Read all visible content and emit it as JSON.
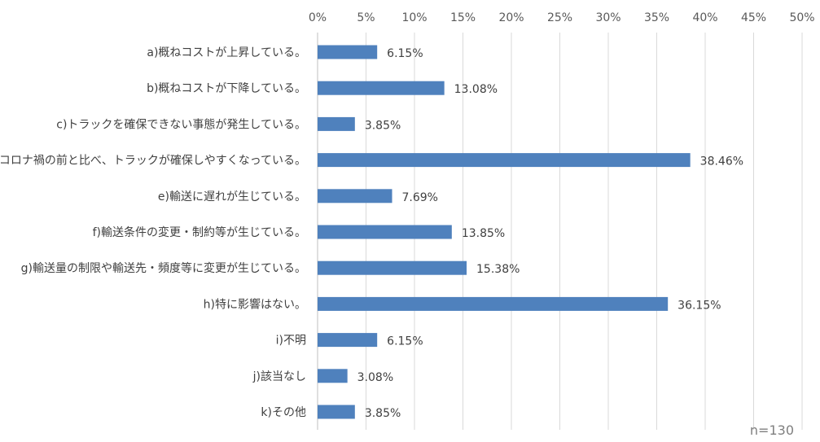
{
  "chart_data": {
    "type": "bar",
    "orientation": "horizontal",
    "categories": [
      "a)概ねコストが上昇している。",
      "b)概ねコストが下降している。",
      "c)トラックを確保できない事態が発生している。",
      "d)コロナ禍の前と比べ、トラックが確保しやすくなっている。",
      "e)輸送に遅れが生じている。",
      "f)輸送条件の変更・制約等が生じている。",
      "g)輸送量の制限や輸送先・頻度等に変更が生じている。",
      "h)特に影響はない。",
      "i)不明",
      "j)該当なし",
      "k)その他"
    ],
    "values": [
      6.15,
      13.08,
      3.85,
      38.46,
      7.69,
      13.85,
      15.38,
      36.15,
      6.15,
      3.08,
      3.85
    ],
    "data_labels": [
      "6.15%",
      "13.08%",
      "3.85%",
      "38.46%",
      "7.69%",
      "13.85%",
      "15.38%",
      "36.15%",
      "6.15%",
      "3.08%",
      "3.85%"
    ],
    "xticks": [
      0,
      5,
      10,
      15,
      20,
      25,
      30,
      35,
      40,
      45,
      50
    ],
    "xtick_labels": [
      "0%",
      "5%",
      "10%",
      "15%",
      "20%",
      "25%",
      "30%",
      "35%",
      "40%",
      "45%",
      "50%"
    ],
    "xlim": [
      0,
      50
    ],
    "x_axis_position": "top",
    "grid": true,
    "bar_color": "#4f81bd",
    "note": "n=130"
  }
}
